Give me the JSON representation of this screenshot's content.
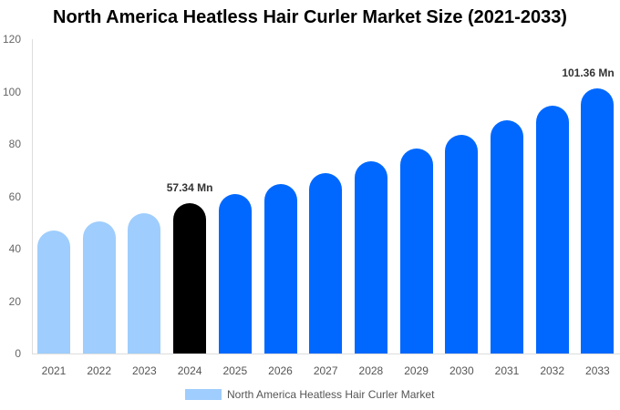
{
  "title": "North America Heatless Hair Curler Market Size (2021-2033)",
  "colors": {
    "historical": "#9fcdfd",
    "base_year": "#000000",
    "forecast": "#0068ff",
    "axis": "#dddddd"
  },
  "legend": {
    "label": "North America Heatless Hair Curler Market",
    "swatch_color": "#9fcdfd"
  },
  "y_ticks": [
    "0",
    "20",
    "40",
    "60",
    "80",
    "100",
    "120"
  ],
  "chart_data": {
    "type": "bar",
    "title": "North America Heatless Hair Curler Market Size (2021-2033)",
    "xlabel": "",
    "ylabel": "",
    "ylim": [
      0,
      120
    ],
    "grid": false,
    "legend_position": "bottom",
    "categories": [
      "2021",
      "2022",
      "2023",
      "2024",
      "2025",
      "2026",
      "2027",
      "2028",
      "2029",
      "2030",
      "2031",
      "2032",
      "2033"
    ],
    "series": [
      {
        "name": "North America Heatless Hair Curler Market",
        "values": [
          47.0,
          50.3,
          53.6,
          57.34,
          61.0,
          64.8,
          68.9,
          73.4,
          78.3,
          83.5,
          89.0,
          94.6,
          101.36
        ]
      }
    ],
    "annotations": [
      {
        "category": "2024",
        "text": "57.34 Mn"
      },
      {
        "category": "2033",
        "text": "101.36 Mn"
      }
    ]
  }
}
